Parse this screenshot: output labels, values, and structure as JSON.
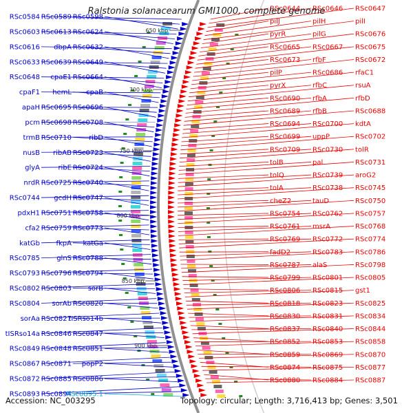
{
  "title": "Ralstonia solanacearum GMI1000, complete genome",
  "accession_text": "Accession: NC_003295",
  "topology_text": "Topology: circular; Length: 3,716,413 bp; Genes: 3,501",
  "colors": {
    "left_strand": "#0000cc",
    "right_strand": "#ee0000",
    "selected_label": "#00aacc",
    "backbone": "#909090",
    "tick_marker": "#228b22"
  },
  "tick_labels": [
    "650 kbp",
    "700 kbp",
    "750 kbp",
    "800 kbp",
    "850 kbp",
    "900 kbp"
  ],
  "left_labels": [
    "RSc0584",
    "RSc0589",
    "RSc0598",
    "RSc0603",
    "RSc0613",
    "RSc0624",
    "RSc0616",
    "dbpA",
    "RSc0632",
    "RSc0633",
    "RSc0639",
    "RSc0649",
    "RSc0648",
    "cpaE1",
    "RSc0664",
    "cpaF1",
    "hemL",
    "cpaB",
    "apaH",
    "RSc0695",
    "RSc0696",
    "pcm",
    "RSc0698",
    "RSc0708",
    "trmB",
    "RSc0710",
    "ribD",
    "nusB",
    "ribAB",
    "RSc0723",
    "glyA",
    "ribE",
    "RSc0724",
    "nrdR",
    "RSc0725",
    "RSc0740",
    "RSc0744",
    "gcdH",
    "RSc0747",
    "pdxH1",
    "RSc0751",
    "RSc0758",
    "cfa2",
    "RSc0759",
    "RSc0773",
    "katGb",
    "fkpA",
    "katGa",
    "RSc0785",
    "glnS",
    "RSc0788",
    "RSc0793",
    "RSc0796",
    "RSc0794",
    "RSc0802",
    "RSc0803",
    "sorB",
    "RSc0804",
    "sorAb",
    "RSc0820",
    "sorAa",
    "RSc0827",
    "tISRso14b",
    "tISRso14a",
    "RSc0846",
    "RSc0847",
    "RSc0849",
    "RSc0848",
    "RSc0851",
    "RSc0867",
    "RSc0871",
    "popP2",
    "RSc0872",
    "RSc0885",
    "RSc0886",
    "RSc0893",
    "RSc0894",
    "RSc0895.1"
  ],
  "right_labels": [
    "RSc0644",
    "RSc0646",
    "RSc0647",
    "pilJ",
    "pilH",
    "pilI",
    "pyrR",
    "pilG",
    "RSc0676",
    "RSc0665",
    "RSc0667",
    "RSc0675",
    "RSc0673",
    "rfbF",
    "RSc0672",
    "pilP",
    "RSc0686",
    "rfaC1",
    "pyrX",
    "rfbC",
    "rsuA",
    "RSc0690",
    "rfbA",
    "rfbD",
    "RSc0689",
    "rfbB",
    "RSc0688",
    "RSc0694",
    "RSc0700",
    "kdtA",
    "RSc0699",
    "uppP",
    "RSc0702",
    "RSc0709",
    "RSc0730",
    "tolR",
    "tolB",
    "pal",
    "RSc0731",
    "tolQ",
    "RSc0739",
    "aroG2",
    "tolA",
    "RSc0738",
    "RSc0745",
    "cheZ2",
    "tauD",
    "RSc0750",
    "RSc0754",
    "RSc0762",
    "RSc0757",
    "RSc0761",
    "msrA",
    "RSc0768",
    "RSc0769",
    "RSc0772",
    "RSc0774",
    "fadD2",
    "RSc0783",
    "RSc0786",
    "RSc0787",
    "alaS",
    "RSc0798",
    "RSc0799",
    "RSc0801",
    "RSc0805",
    "RSc0806",
    "RSc0815",
    "gst1",
    "RSc0818",
    "RSc0823",
    "RSc0825",
    "RSc0830",
    "RSc0831",
    "RSc0834",
    "RSc0837",
    "RSc0840",
    "RSc0844",
    "RSc0852",
    "RSc0853",
    "RSc0858",
    "RSc0859",
    "RSc0869",
    "RSc0870",
    "RSc0874",
    "RSc0875",
    "RSc0877",
    "RSc0880",
    "RSc0884",
    "RSc0887"
  ]
}
